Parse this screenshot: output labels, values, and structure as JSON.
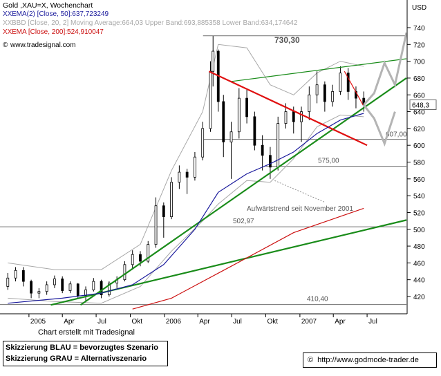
{
  "header": {
    "title": "Gold ,XAU=X, Wochenchart",
    "legend": [
      {
        "marker": "XX",
        "text": "EMA(2) [Close, 50]:637,723249",
        "color": "#1a1a9c"
      },
      {
        "marker": "XX",
        "text": "BBD [Close, 20, 2] Moving Average:664,03 Upper Band:693,885358 Lower Band:634,174642",
        "color": "#a8a8a8"
      },
      {
        "marker": "XX",
        "text": "EMA [Close, 200]:524,910047",
        "color": "#cc1010"
      }
    ],
    "copyright": "www.tradesignal.com",
    "copyright_symbol": "©"
  },
  "axis": {
    "unit": "USD",
    "last_price": "648,3",
    "y_ticks": [
      "740",
      "720",
      "700",
      "680",
      "660",
      "640",
      "620",
      "600",
      "580",
      "560",
      "540",
      "520",
      "500",
      "480",
      "460",
      "440",
      "420"
    ],
    "x_ticks": [
      "2005",
      "Apr",
      "Jul",
      "Okt",
      "2006",
      "Apr",
      "Jul",
      "Okt",
      "2007",
      "Apr",
      "Jul"
    ]
  },
  "annotations": {
    "level_730": "730,30",
    "level_607": "607,00",
    "level_575": "575,00",
    "level_502": "502,97",
    "level_410": "410,40",
    "trend_note": "Aufwärtstrend seit November 2001"
  },
  "footer": {
    "credit": "Chart erstellt mit Tradesignal",
    "legend_blue": "Skizzierung BLAU = bevorzugtes Szenario",
    "legend_grey": "Skizzierung GRAU = Alternativszenario",
    "url": "http://www.godmode-trader.de",
    "url_symbol": "©"
  },
  "chart_data": {
    "type": "candlestick",
    "title": "Gold ,XAU=X, Wochenchart",
    "ylabel": "USD",
    "ylim": [
      405,
      750
    ],
    "x_range": [
      "2004-10-15",
      "2007-10-15"
    ],
    "grid": false,
    "candles": [
      [
        "2004-11-05",
        432,
        448,
        428,
        442
      ],
      [
        "2004-11-26",
        442,
        455,
        438,
        451
      ],
      [
        "2004-12-17",
        451,
        455,
        432,
        438
      ],
      [
        "2005-01-07",
        438,
        440,
        418,
        424
      ],
      [
        "2005-01-28",
        424,
        430,
        418,
        426
      ],
      [
        "2005-02-18",
        426,
        438,
        422,
        434
      ],
      [
        "2005-03-11",
        434,
        445,
        430,
        441
      ],
      [
        "2005-04-01",
        441,
        444,
        424,
        427
      ],
      [
        "2005-04-22",
        427,
        438,
        424,
        435
      ],
      [
        "2005-05-13",
        435,
        436,
        418,
        421
      ],
      [
        "2005-06-03",
        421,
        432,
        414,
        428
      ],
      [
        "2005-06-24",
        428,
        442,
        426,
        438
      ],
      [
        "2005-07-15",
        438,
        440,
        418,
        422
      ],
      [
        "2005-08-05",
        422,
        438,
        420,
        436
      ],
      [
        "2005-08-26",
        436,
        444,
        430,
        440
      ],
      [
        "2005-09-16",
        440,
        462,
        438,
        458
      ],
      [
        "2005-10-07",
        458,
        475,
        452,
        470
      ],
      [
        "2005-10-28",
        470,
        474,
        456,
        462
      ],
      [
        "2005-11-18",
        462,
        486,
        460,
        482
      ],
      [
        "2005-12-09",
        482,
        538,
        478,
        528
      ],
      [
        "2005-12-30",
        528,
        532,
        490,
        515
      ],
      [
        "2006-01-20",
        515,
        562,
        512,
        556
      ],
      [
        "2006-02-10",
        556,
        576,
        548,
        568
      ],
      [
        "2006-03-03",
        568,
        572,
        542,
        562
      ],
      [
        "2006-03-24",
        562,
        592,
        558,
        586
      ],
      [
        "2006-04-14",
        586,
        628,
        582,
        620
      ],
      [
        "2006-05-05",
        620,
        700,
        616,
        688
      ],
      [
        "2006-05-12",
        688,
        730,
        670,
        712
      ],
      [
        "2006-05-26",
        712,
        714,
        640,
        652
      ],
      [
        "2006-06-09",
        652,
        660,
        586,
        604
      ],
      [
        "2006-06-30",
        604,
        628,
        560,
        616
      ],
      [
        "2006-07-21",
        616,
        668,
        608,
        656
      ],
      [
        "2006-08-11",
        656,
        666,
        626,
        634
      ],
      [
        "2006-09-01",
        634,
        640,
        594,
        600
      ],
      [
        "2006-09-22",
        600,
        612,
        570,
        588
      ],
      [
        "2006-10-13",
        588,
        598,
        560,
        574
      ],
      [
        "2006-11-03",
        574,
        634,
        570,
        626
      ],
      [
        "2006-11-24",
        626,
        650,
        620,
        640
      ],
      [
        "2006-12-15",
        640,
        646,
        614,
        628
      ],
      [
        "2007-01-05",
        628,
        646,
        604,
        640
      ],
      [
        "2007-01-26",
        640,
        670,
        630,
        660
      ],
      [
        "2007-02-16",
        660,
        688,
        650,
        672
      ],
      [
        "2007-03-09",
        672,
        676,
        640,
        652
      ],
      [
        "2007-03-30",
        652,
        672,
        646,
        664
      ],
      [
        "2007-04-20",
        664,
        694,
        660,
        686
      ],
      [
        "2007-05-11",
        686,
        692,
        654,
        664
      ],
      [
        "2007-06-01",
        664,
        670,
        644,
        656
      ],
      [
        "2007-06-22",
        656,
        664,
        640,
        648
      ]
    ],
    "series": [
      {
        "name": "EMA(2) [Close, 50]",
        "color": "#1a1a9c",
        "x": [
          "2004-11-05",
          "2005-04-01",
          "2005-07-15",
          "2005-10-07",
          "2005-12-30",
          "2006-03-24",
          "2006-05-26",
          "2006-08-11",
          "2006-10-13",
          "2006-12-15",
          "2007-02-16",
          "2007-04-20",
          "2007-06-22"
        ],
        "y": [
          412,
          418,
          424,
          434,
          458,
          500,
          544,
          566,
          578,
          592,
          614,
          630,
          638
        ]
      },
      {
        "name": "EMA [Close, 200]",
        "color": "#cc1010",
        "x": [
          "2005-10-07",
          "2006-01-20",
          "2006-06-30",
          "2006-12-15",
          "2007-06-22"
        ],
        "y": [
          405,
          418,
          456,
          496,
          525
        ]
      },
      {
        "name": "BBD Upper Band",
        "color": "#a8a8a8",
        "x": [
          "2004-11-05",
          "2005-03-11",
          "2005-07-15",
          "2005-10-28",
          "2006-01-20",
          "2006-04-14",
          "2006-05-26",
          "2006-08-11",
          "2006-10-13",
          "2006-12-15",
          "2007-02-16",
          "2007-04-20",
          "2007-06-22"
        ],
        "y": [
          460,
          452,
          452,
          482,
          570,
          640,
          720,
          716,
          672,
          660,
          686,
          700,
          694
        ]
      },
      {
        "name": "BBD Lower Band",
        "color": "#a8a8a8",
        "x": [
          "2004-11-05",
          "2005-03-11",
          "2005-07-15",
          "2005-10-28",
          "2006-01-20",
          "2006-04-14",
          "2006-05-26",
          "2006-08-11",
          "2006-10-13",
          "2006-12-15",
          "2007-02-16",
          "2007-04-20",
          "2007-06-22"
        ],
        "y": [
          418,
          414,
          412,
          432,
          474,
          510,
          530,
          558,
          556,
          584,
          622,
          636,
          634
        ]
      }
    ],
    "trendlines": [
      {
        "name": "uptrend-steep",
        "color": "#1a8c1a",
        "x": [
          "2005-05-20",
          "2007-10-15"
        ],
        "y": [
          410,
          680
        ]
      },
      {
        "name": "uptrend-long",
        "color": "#1a8c1a",
        "x": [
          "2005-03-01",
          "2007-10-15"
        ],
        "y": [
          410,
          511
        ]
      },
      {
        "name": "channel-top",
        "color": "#1a8c1a",
        "x": [
          "2006-07-01",
          "2007-10-15"
        ],
        "y": [
          676,
          703
        ]
      },
      {
        "name": "downtrend",
        "color": "#e01010",
        "x": [
          "2006-05-01",
          "2007-07-01"
        ],
        "y": [
          688,
          600
        ]
      },
      {
        "name": "short-downtrend",
        "color": "#e01010",
        "x": [
          "2007-05-01",
          "2007-06-20"
        ],
        "y": [
          688,
          648
        ]
      },
      {
        "name": "level-730",
        "color": "#707070",
        "x": [
          "2006-04-15",
          "2007-10-15"
        ],
        "y": [
          730.3,
          730.3
        ]
      },
      {
        "name": "level-607",
        "color": "#707070",
        "x": [
          "2006-04-15",
          "2007-10-15"
        ],
        "y": [
          607,
          607
        ]
      },
      {
        "name": "level-575",
        "color": "#707070",
        "x": [
          "2006-10-01",
          "2007-10-15"
        ],
        "y": [
          575,
          575
        ]
      },
      {
        "name": "level-502",
        "color": "#707070",
        "x": [
          "2004-10-15",
          "2007-10-15"
        ],
        "y": [
          502.97,
          502.97
        ]
      },
      {
        "name": "level-410",
        "color": "#707070",
        "x": [
          "2004-10-15",
          "2007-10-15"
        ],
        "y": [
          410.4,
          410.4
        ]
      },
      {
        "name": "trend-note-pointer",
        "color": "#909090",
        "dash": true,
        "x": [
          "2006-10-25",
          "2007-03-10"
        ],
        "y": [
          558,
          532
        ]
      }
    ],
    "scenarios": [
      {
        "name": "bevorzugtes Szenario",
        "color": "#b4b4b4",
        "x": [
          "2007-06-22",
          "2007-07-20",
          "2007-08-17",
          "2007-09-14",
          "2007-10-15"
        ],
        "y": [
          648,
          662,
          698,
          672,
          734
        ]
      },
      {
        "name": "Alternativszenario",
        "color": "#b4b4b4",
        "x": [
          "2007-06-22",
          "2007-07-20",
          "2007-08-17",
          "2007-09-14"
        ],
        "y": [
          648,
          632,
          602,
          640
        ]
      }
    ]
  }
}
